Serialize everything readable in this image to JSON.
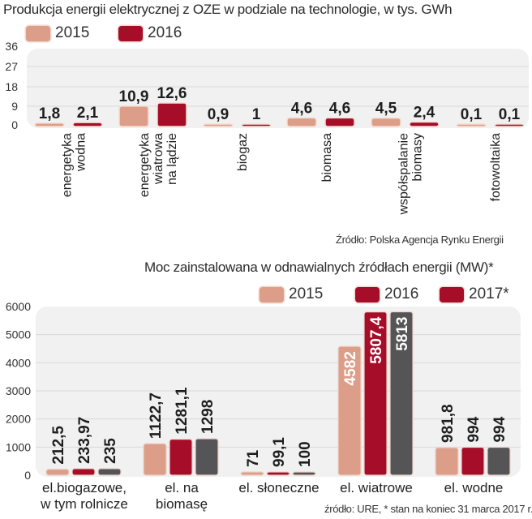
{
  "colors": {
    "c2015": "#dc9e89",
    "c2016": "#a50d28",
    "c2017": "#555557",
    "c2017_legend": "#a50d28",
    "panel": "#f1f1f2",
    "grid": "#d9d9db"
  },
  "chart_data": [
    {
      "type": "bar",
      "title": "Produkcja energii elektrycznej z OZE w podziale na technologie, w tys. GWh",
      "legend": [
        "2015",
        "2016"
      ],
      "legend_position": "top-left",
      "categories": [
        [
          "energetyka",
          "wodna"
        ],
        [
          "energetyka",
          "wiatrowa",
          "na lądzie"
        ],
        [
          "biogaz"
        ],
        [
          "biomasa"
        ],
        [
          "współspalanie",
          "biomasy"
        ],
        [
          "fotowoltaika"
        ]
      ],
      "series": [
        {
          "name": "2015",
          "values": [
            1.8,
            10.9,
            0.9,
            4.6,
            4.5,
            0.1
          ],
          "labels": [
            "1,8",
            "10,9",
            "0,9",
            "4,6",
            "4,5",
            "0,1"
          ]
        },
        {
          "name": "2016",
          "values": [
            2.1,
            12.6,
            1,
            4.6,
            2.4,
            0.1
          ],
          "labels": [
            "2,1",
            "12,6",
            "1",
            "4,6",
            "2,4",
            "0,1"
          ]
        }
      ],
      "yticks": [
        "36",
        "27",
        "18",
        "9",
        "0"
      ],
      "ylim": [
        0,
        36
      ],
      "grid": true,
      "xlabel": "",
      "ylabel": "",
      "source": "Źródło: Polska Agencja Rynku Energii"
    },
    {
      "type": "bar",
      "title": "Moc zainstalowana w odnawialnych źródłach energii (MW)*",
      "legend": [
        "2015",
        "2016",
        "2017*"
      ],
      "legend_position": "top-right",
      "categories": [
        [
          "el.biogazowe,",
          "w tym rolnicze"
        ],
        [
          "el. na",
          "biomasę"
        ],
        [
          "el. słoneczne"
        ],
        [
          "el. wiatrowe"
        ],
        [
          "el. wodne"
        ]
      ],
      "series": [
        {
          "name": "2015",
          "values": [
            212.5,
            1122.7,
            71,
            4582,
            981.8
          ],
          "labels": [
            "212,5",
            "1122,7",
            "71",
            "4582",
            "981,8"
          ]
        },
        {
          "name": "2016",
          "values": [
            233.97,
            1281.1,
            99.1,
            5807.4,
            994
          ],
          "labels": [
            "233,97",
            "1281,1",
            "99,1",
            "5807,4",
            "994"
          ]
        },
        {
          "name": "2017*",
          "values": [
            235,
            1298,
            100,
            5813,
            994
          ],
          "labels": [
            "235",
            "1298",
            "100",
            "5813",
            "994"
          ]
        }
      ],
      "yticks": [
        "6000",
        "5000",
        "4000",
        "3000",
        "2000",
        "1000",
        "0"
      ],
      "ylim": [
        0,
        6000
      ],
      "grid": true,
      "xlabel": "",
      "ylabel": "",
      "source": "źródło: URE, * stan na koniec  31 marca 2017 r."
    }
  ]
}
